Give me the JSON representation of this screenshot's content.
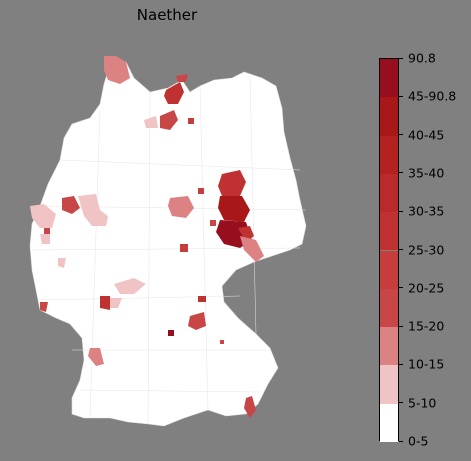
{
  "title": "Naether",
  "legend": {
    "boundaries": [
      "0-5",
      "5-10",
      "10-15",
      "15-20",
      "20-25",
      "25-30",
      "30-35",
      "35-40",
      "40-45",
      "45-90.8",
      "90.8"
    ],
    "bins": [
      {
        "label": "0-5",
        "color": "#ffffff"
      },
      {
        "label": "5-10",
        "color": "#f0c4c4"
      },
      {
        "label": "10-15",
        "color": "#dc8282"
      },
      {
        "label": "15-20",
        "color": "#c94646"
      },
      {
        "label": "20-25",
        "color": "#c53d3d"
      },
      {
        "label": "25-30",
        "color": "#c03232"
      },
      {
        "label": "30-35",
        "color": "#bb2a2a"
      },
      {
        "label": "35-40",
        "color": "#b52121"
      },
      {
        "label": "40-45",
        "color": "#a81818"
      },
      {
        "label": "45-90.8",
        "color": "#970f1e"
      }
    ]
  }
}
